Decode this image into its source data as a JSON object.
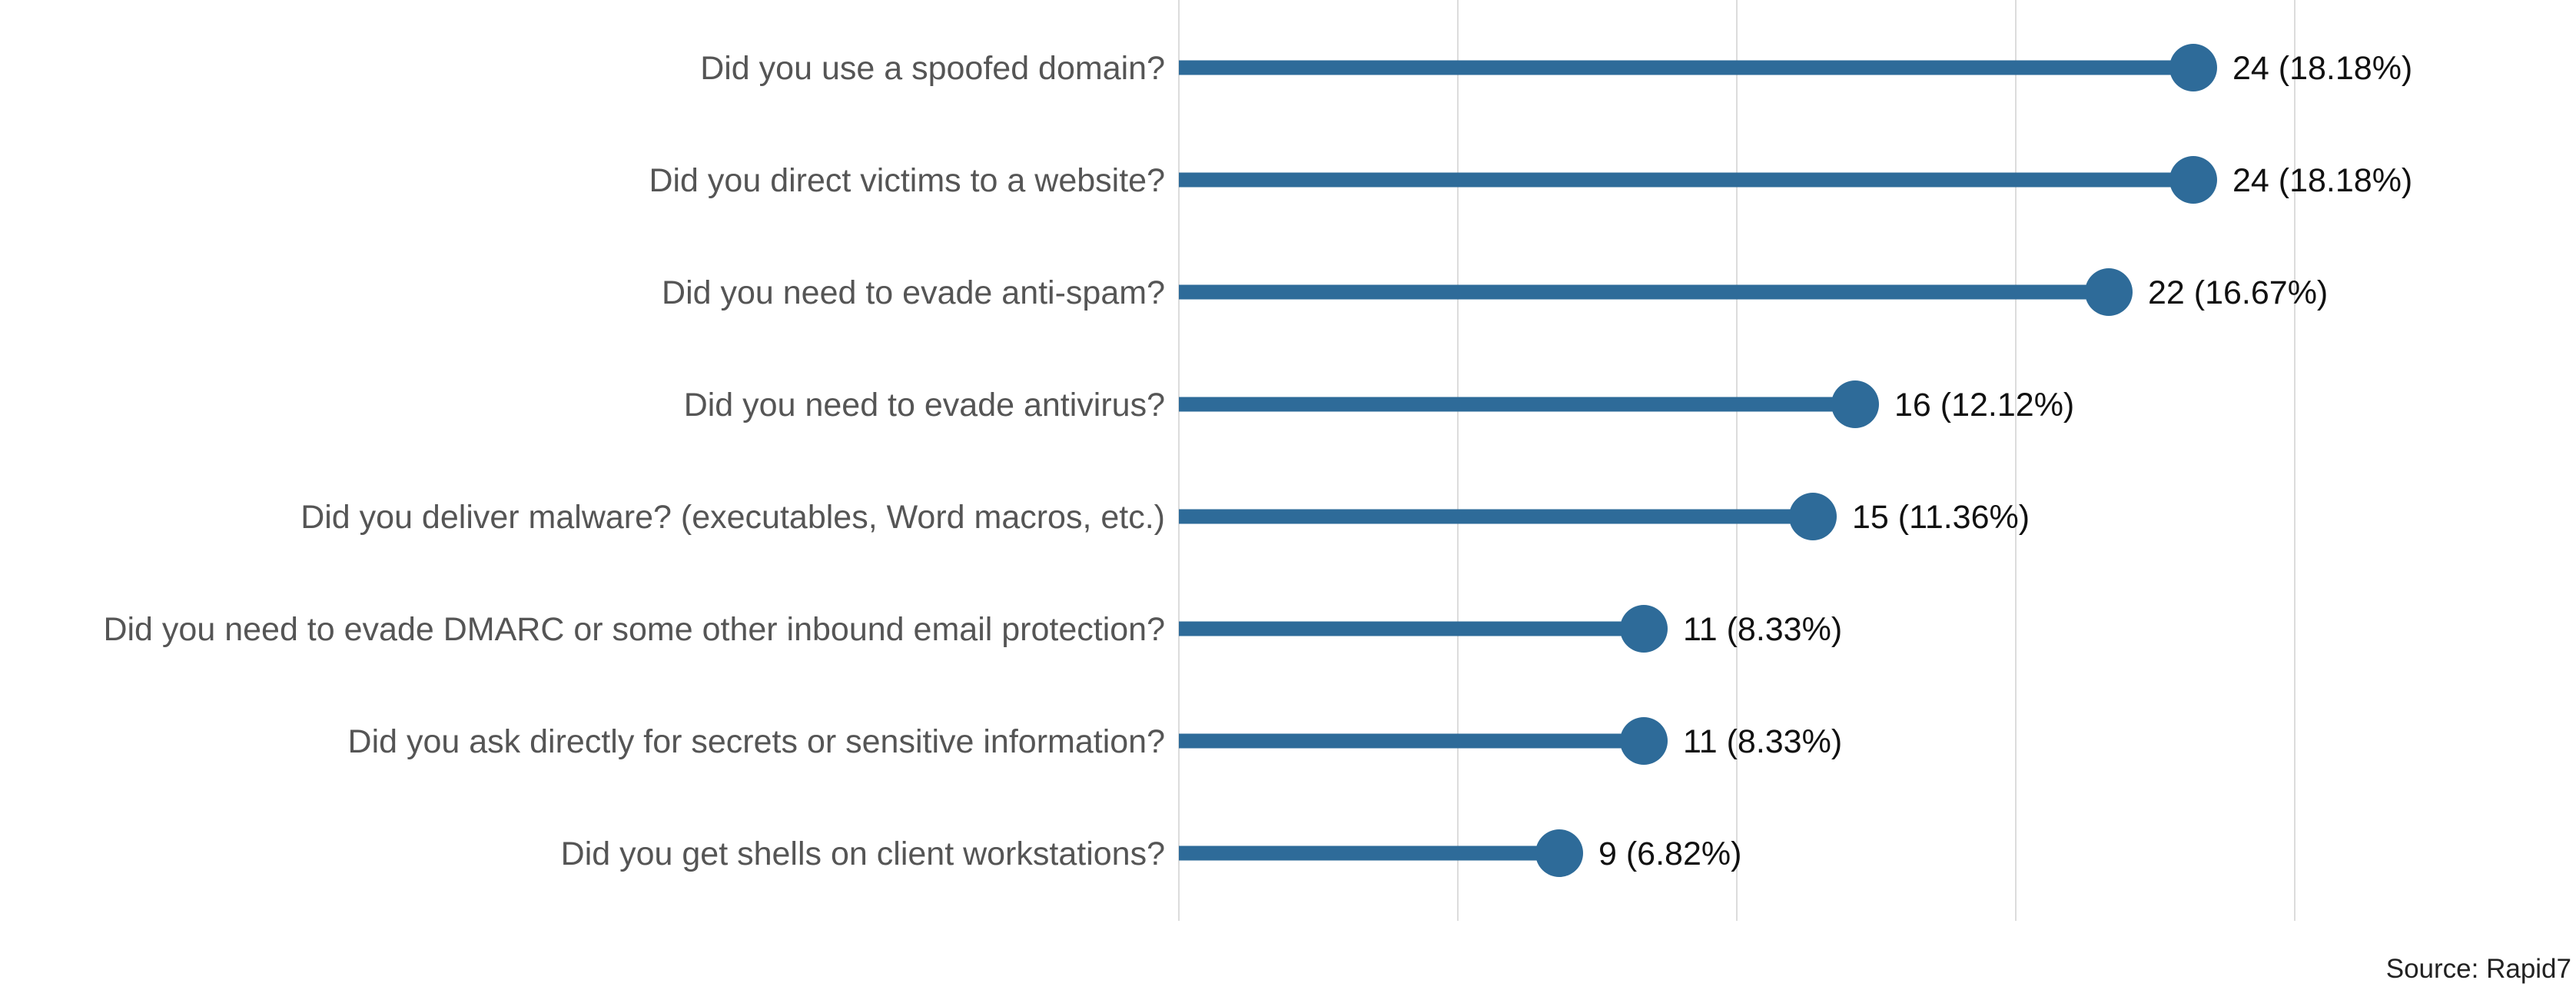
{
  "chart_data": {
    "type": "lollipop",
    "categories": [
      "Did you use a spoofed domain?",
      "Did you direct victims to a website?",
      "Did you need to evade anti-spam?",
      "Did you need to evade antivirus?",
      "Did you deliver malware? (executables, Word macros, etc.)",
      "Did you need to evade DMARC or some other inbound email protection?",
      "Did you ask directly for secrets or sensitive information?",
      "Did you get shells on client workstations?"
    ],
    "values": [
      24,
      24,
      22,
      16,
      15,
      11,
      11,
      9
    ],
    "data_labels": [
      "24 (18.18%)",
      "24 (18.18%)",
      "22 (16.67%)",
      "16 (12.12%)",
      "15 (11.36%)",
      "11 (8.33%)",
      "11 (8.33%)",
      "9 (6.82%)"
    ],
    "xlim": [
      0,
      30
    ],
    "grid_ticks": [
      0,
      6.6,
      13.2,
      19.8,
      26.4
    ],
    "grid": true,
    "legend": "none",
    "color": "#2e6b99",
    "source": "Source: Rapid7"
  }
}
